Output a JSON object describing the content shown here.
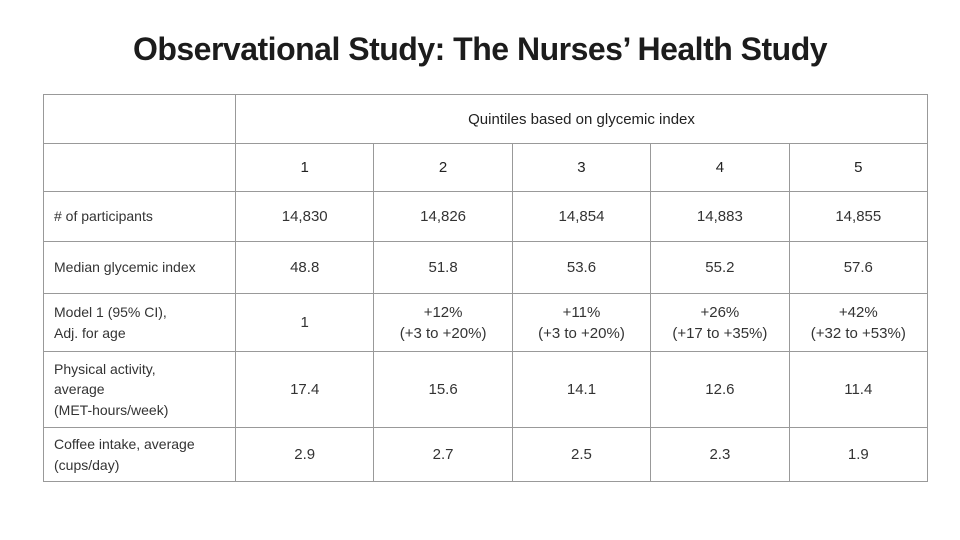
{
  "page": {
    "title": "Observational Study: The Nurses’ Health Study"
  },
  "table": {
    "group_header": "Quintiles based on glycemic index",
    "quintile_columns": [
      "1",
      "2",
      "3",
      "4",
      "5"
    ],
    "rows": [
      {
        "label": "# of participants",
        "values": [
          "14,830",
          "14,826",
          "14,854",
          "14,883",
          "14,855"
        ]
      },
      {
        "label": "Median glycemic index",
        "values": [
          "48.8",
          "51.8",
          "53.6",
          "55.2",
          "57.6"
        ]
      },
      {
        "label": "Model 1 (95% CI),\nAdj. for age",
        "values": [
          "1",
          "+12%\n(+3 to +20%)",
          "+11%\n(+3 to +20%)",
          "+26%\n(+17 to +35%)",
          "+42%\n(+32 to +53%)"
        ]
      },
      {
        "label": "Physical activity,\naverage\n(MET-hours/week)",
        "values": [
          "17.4",
          "15.6",
          "14.1",
          "12.6",
          "11.4"
        ]
      },
      {
        "label": "Coffee intake, average\n(cups/day)",
        "values": [
          "2.9",
          "2.7",
          "2.5",
          "2.3",
          "1.9"
        ]
      }
    ],
    "colors": {
      "border": "#999999",
      "text": "#333333",
      "title": "#1c1c1c",
      "background": "#ffffff"
    }
  }
}
